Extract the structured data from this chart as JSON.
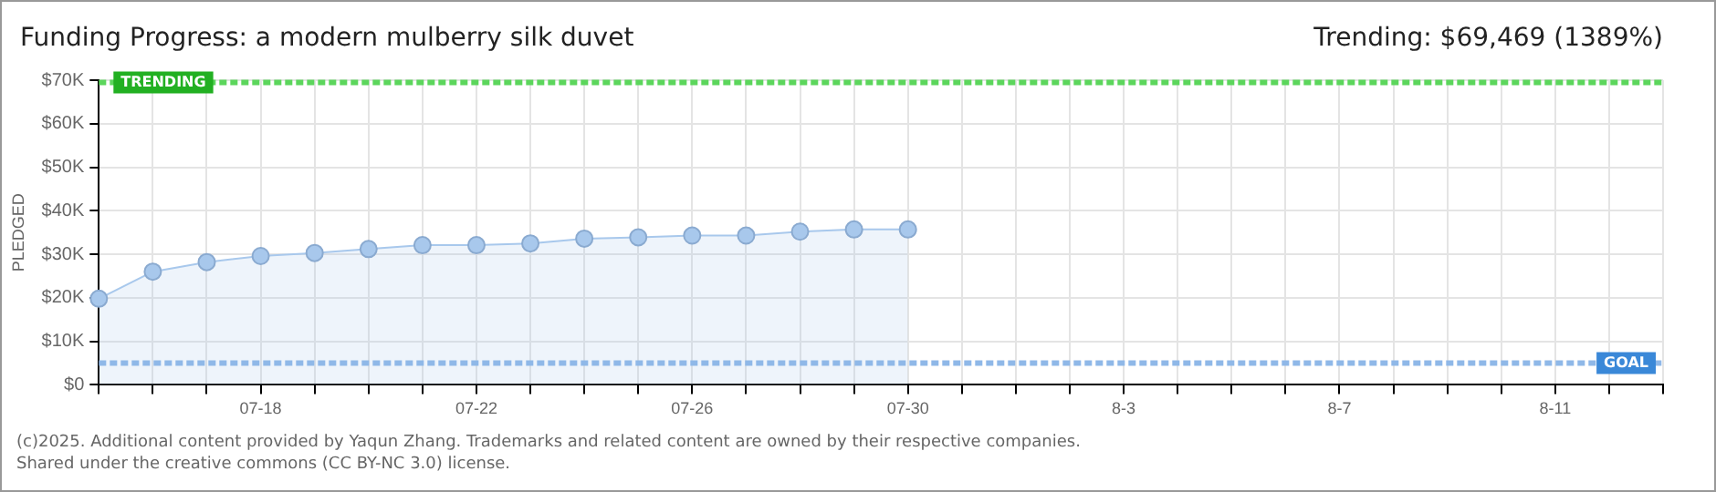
{
  "chart_data": {
    "type": "area",
    "title": "Funding Progress: a modern mulberry silk duvet",
    "subtitle": "Trending: $69,469 (1389%)",
    "ylabel": "PLEDGED",
    "categories": [
      null,
      null,
      null,
      "07-18",
      null,
      null,
      null,
      "07-22",
      null,
      null,
      null,
      "07-26",
      null,
      null,
      null,
      "07-30",
      null,
      null,
      null,
      "8-3",
      null,
      null,
      null,
      "8-7",
      null,
      null,
      null,
      "8-11",
      null,
      null
    ],
    "series": [
      {
        "color": "#a8c8ec",
        "values": [
          19800,
          26000,
          28200,
          29600,
          30300,
          31200,
          32100,
          32100,
          32500,
          33600,
          33900,
          34300,
          34300,
          35200,
          35700,
          35700,
          null,
          null,
          null,
          null,
          null,
          null,
          null,
          null,
          null,
          null,
          null,
          null,
          null,
          null
        ]
      }
    ],
    "ylim": [
      0,
      70000
    ],
    "yticks": [
      {
        "value": 0,
        "label": "$0"
      },
      {
        "value": 10000,
        "label": "$10K"
      },
      {
        "value": 20000,
        "label": "$20K"
      },
      {
        "value": 30000,
        "label": "$30K"
      },
      {
        "value": 40000,
        "label": "$40K"
      },
      {
        "value": 50000,
        "label": "$50K"
      },
      {
        "value": 60000,
        "label": "$60K"
      },
      {
        "value": 70000,
        "label": "$70K"
      }
    ],
    "ref_lines": [
      {
        "axis": "y",
        "value": 69469,
        "label": "TRENDING",
        "color": "#5cd65c",
        "line_style": "dashed"
      },
      {
        "axis": "y",
        "value": 5000,
        "label": "GOAL",
        "color": "#8fb8e8",
        "line_style": "dashed"
      }
    ],
    "grid": true,
    "legend": false,
    "marker": "circle",
    "line_style": "solid",
    "annotations": [
      "(c)2025. Additional content provided by Yaqun Zhang. Trademarks and related content are owned by their respective companies.",
      "Shared under the creative commons (CC BY-NC 3.0) license."
    ]
  }
}
